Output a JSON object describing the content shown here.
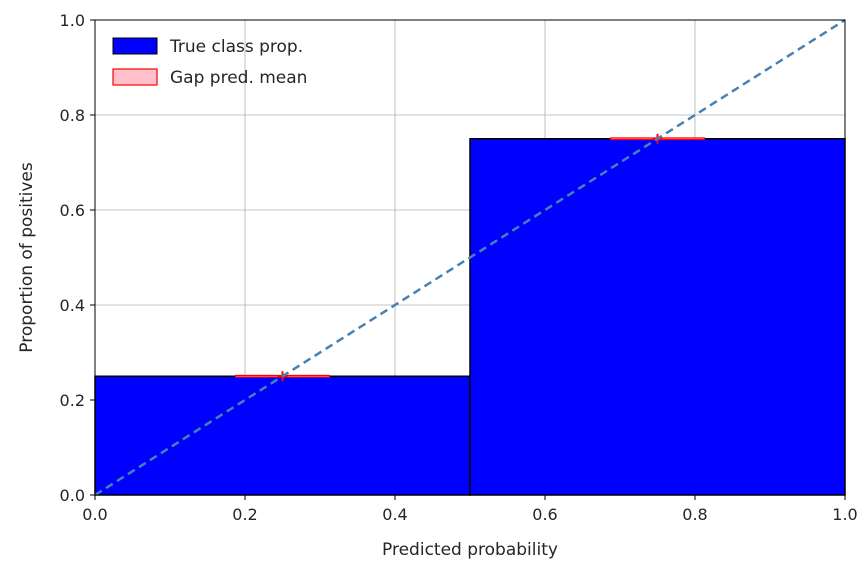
{
  "chart_data": {
    "type": "bar",
    "title": "",
    "xlabel": "Predicted probability",
    "ylabel": "Proportion of positives",
    "xlim": [
      0.0,
      1.0
    ],
    "ylim": [
      0.0,
      1.0
    ],
    "xticks": [
      "0.0",
      "0.2",
      "0.4",
      "0.6",
      "0.8",
      "1.0"
    ],
    "yticks": [
      "0.0",
      "0.2",
      "0.4",
      "0.6",
      "0.8",
      "1.0"
    ],
    "grid": true,
    "legend_position": "top-left",
    "bins": [
      {
        "x_start": 0.0,
        "x_end": 0.5,
        "true_class_prop": 0.25,
        "pred_mean": 0.25
      },
      {
        "x_start": 0.5,
        "x_end": 1.0,
        "true_class_prop": 0.75,
        "pred_mean": 0.75
      }
    ],
    "series": [
      {
        "name": "True class prop.",
        "color": "#0000ff",
        "edge_color": "#000000"
      },
      {
        "name": "Gap pred. mean",
        "color": "#ffc0cb",
        "edge_color": "#ff0000"
      }
    ],
    "diagonal": {
      "from": [
        0.0,
        0.0
      ],
      "to": [
        1.0,
        1.0
      ],
      "color": "#4682b4",
      "style": "dashed"
    }
  }
}
